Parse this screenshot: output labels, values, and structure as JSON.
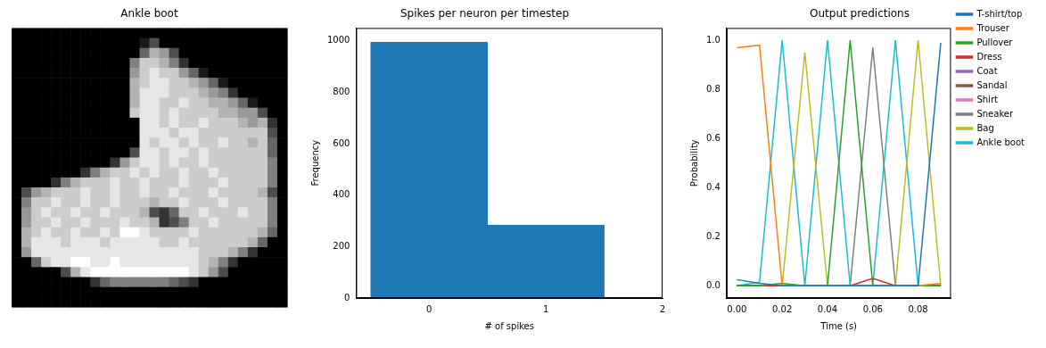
{
  "chart_data": [
    {
      "type": "image",
      "title": "Ankle boot",
      "tick_labels": false,
      "cells": [
        [
          0,
          0,
          0,
          0,
          0,
          0,
          0,
          0,
          0,
          0,
          0,
          0,
          0,
          0,
          0,
          0,
          0,
          0,
          0,
          0,
          0,
          0,
          0,
          0,
          0,
          0,
          0,
          0
        ],
        [
          0,
          0,
          0,
          0,
          0,
          0,
          0,
          0,
          0,
          0,
          0,
          0,
          0,
          0.1,
          0.3,
          0,
          0,
          0,
          0,
          0,
          0,
          0,
          0,
          0,
          0,
          0,
          0,
          0
        ],
        [
          0,
          0,
          0,
          0,
          0,
          0,
          0,
          0,
          0,
          0,
          0,
          0,
          0,
          0.4,
          0.7,
          0.6,
          0.3,
          0,
          0,
          0,
          0,
          0,
          0,
          0,
          0,
          0,
          0,
          0
        ],
        [
          0,
          0,
          0,
          0,
          0,
          0,
          0,
          0,
          0,
          0,
          0,
          0,
          0.5,
          0.8,
          0.8,
          0.7,
          0.5,
          0.2,
          0,
          0,
          0,
          0,
          0,
          0,
          0,
          0,
          0,
          0
        ],
        [
          0,
          0,
          0,
          0,
          0,
          0,
          0,
          0,
          0,
          0,
          0,
          0,
          0.6,
          0.8,
          0.9,
          0.8,
          0.8,
          0.6,
          0.4,
          0.1,
          0,
          0,
          0,
          0,
          0,
          0,
          0,
          0
        ],
        [
          0,
          0,
          0,
          0,
          0,
          0,
          0,
          0,
          0,
          0,
          0,
          0,
          0.7,
          0.8,
          0.9,
          0.9,
          0.8,
          0.8,
          0.7,
          0.6,
          0.4,
          0.1,
          0,
          0,
          0,
          0,
          0,
          0
        ],
        [
          0,
          0,
          0,
          0,
          0,
          0,
          0,
          0,
          0,
          0,
          0,
          0,
          0.7,
          0.9,
          0.9,
          0.9,
          0.8,
          0.8,
          0.8,
          0.7,
          0.6,
          0.5,
          0.2,
          0,
          0,
          0,
          0,
          0
        ],
        [
          0,
          0,
          0,
          0,
          0,
          0,
          0,
          0,
          0,
          0,
          0,
          0,
          0.7,
          0.9,
          0.9,
          0.8,
          0.8,
          0.9,
          0.8,
          0.8,
          0.7,
          0.7,
          0.6,
          0.4,
          0.1,
          0,
          0,
          0
        ],
        [
          0,
          0,
          0,
          0,
          0,
          0,
          0,
          0,
          0,
          0,
          0,
          0,
          0.8,
          0.9,
          0.9,
          0.8,
          0.9,
          0.8,
          0.8,
          0.8,
          0.8,
          0.7,
          0.7,
          0.6,
          0.6,
          0.3,
          0,
          0
        ],
        [
          0,
          0,
          0,
          0,
          0,
          0,
          0,
          0,
          0,
          0,
          0,
          0,
          0,
          0.9,
          0.9,
          0.8,
          0.9,
          0.8,
          0.8,
          0.9,
          0.8,
          0.8,
          0.8,
          0.7,
          0.6,
          0.7,
          0.2,
          0
        ],
        [
          0,
          0,
          0,
          0,
          0,
          0,
          0,
          0,
          0,
          0,
          0,
          0,
          0,
          0.9,
          0.9,
          0.9,
          0.8,
          0.9,
          0.9,
          0.8,
          0.8,
          0.8,
          0.8,
          0.8,
          0.8,
          0.8,
          0.3,
          0
        ],
        [
          0,
          0,
          0,
          0,
          0,
          0,
          0,
          0,
          0,
          0,
          0,
          0,
          0,
          0.9,
          0.8,
          0.9,
          0.9,
          0.8,
          0.9,
          0.8,
          0.8,
          0.9,
          0.8,
          0.8,
          0.7,
          0.8,
          0.4,
          0
        ],
        [
          0,
          0,
          0,
          0,
          0,
          0,
          0,
          0,
          0,
          0,
          0,
          0,
          0.3,
          0.9,
          0.9,
          0.8,
          0.9,
          0.9,
          0.8,
          0.9,
          0.8,
          0.8,
          0.8,
          0.8,
          0.8,
          0.8,
          0.4,
          0
        ],
        [
          0,
          0,
          0,
          0,
          0,
          0,
          0,
          0,
          0,
          0,
          0.2,
          0.6,
          0.8,
          0.9,
          0.9,
          0.8,
          0.9,
          0.8,
          0.8,
          0.9,
          0.8,
          0.8,
          0.8,
          0.8,
          0.8,
          0.8,
          0.5,
          0
        ],
        [
          0,
          0,
          0,
          0,
          0,
          0,
          0,
          0.2,
          0.5,
          0.7,
          0.8,
          0.8,
          0.9,
          0.8,
          0.9,
          0.8,
          0.8,
          0.9,
          0.8,
          0.8,
          0.9,
          0.8,
          0.8,
          0.8,
          0.8,
          0.8,
          0.5,
          0
        ],
        [
          0,
          0,
          0,
          0,
          0.2,
          0.5,
          0.7,
          0.8,
          0.8,
          0.8,
          0.9,
          0.8,
          0.8,
          0.9,
          0.8,
          0.8,
          0.8,
          0.9,
          0.8,
          0.8,
          0.8,
          0.9,
          0.8,
          0.8,
          0.8,
          0.8,
          0.5,
          0
        ],
        [
          0,
          0.3,
          0.6,
          0.7,
          0.8,
          0.8,
          0.8,
          0.9,
          0.8,
          0.8,
          0.9,
          0.8,
          0.8,
          0.9,
          0.8,
          0.8,
          0.9,
          0.8,
          0.8,
          0.8,
          0.9,
          0.8,
          0.8,
          0.8,
          0.8,
          0.7,
          0.3,
          0
        ],
        [
          0,
          0.5,
          0.8,
          0.8,
          0.9,
          0.8,
          0.8,
          0.9,
          0.8,
          0.8,
          0.9,
          0.8,
          0.8,
          0.8,
          0.7,
          0.8,
          0.8,
          0.9,
          0.8,
          0.8,
          0.8,
          0.9,
          0.8,
          0.8,
          0.8,
          0.8,
          0.5,
          0
        ],
        [
          0,
          0.6,
          0.8,
          0.9,
          0.8,
          0.8,
          0.9,
          0.8,
          0.8,
          0.9,
          0.8,
          0.8,
          0.8,
          0.7,
          0.3,
          0.2,
          0.4,
          0.8,
          0.8,
          0.9,
          0.8,
          0.8,
          0.8,
          0.9,
          0.8,
          0.8,
          0.5,
          0
        ],
        [
          0,
          0.6,
          0.8,
          0.8,
          0.9,
          0.8,
          0.8,
          0.9,
          0.8,
          0.8,
          0.8,
          0.9,
          0.8,
          0.8,
          0.7,
          0.2,
          0.3,
          0.5,
          0.8,
          0.8,
          0.9,
          0.8,
          0.8,
          0.8,
          0.8,
          0.8,
          0.5,
          0
        ],
        [
          0,
          0.7,
          0.8,
          0.9,
          0.8,
          0.8,
          0.9,
          0.8,
          0.8,
          0.9,
          0.8,
          1.0,
          1.0,
          0.9,
          0.8,
          0.8,
          0.8,
          0.8,
          0.9,
          0.8,
          0.8,
          0.8,
          0.8,
          0.8,
          0.8,
          0.7,
          0.4,
          0
        ],
        [
          0,
          0.7,
          0.9,
          0.9,
          0.9,
          0.8,
          0.9,
          0.9,
          0.9,
          0.8,
          0.9,
          0.9,
          0.9,
          0.9,
          0.9,
          0.8,
          0.8,
          0.9,
          0.8,
          0.8,
          0.8,
          0.8,
          0.8,
          0.8,
          0.7,
          0.4,
          0,
          0
        ],
        [
          0,
          0.6,
          0.9,
          0.9,
          0.9,
          0.9,
          0.9,
          0.9,
          0.9,
          0.9,
          0.9,
          0.9,
          0.9,
          0.9,
          0.9,
          0.9,
          0.9,
          0.9,
          0.9,
          0.8,
          0.8,
          0.8,
          0.7,
          0.5,
          0.2,
          0,
          0,
          0
        ],
        [
          0,
          0,
          0.4,
          0.8,
          0.9,
          0.9,
          1.0,
          1.0,
          0.9,
          0.9,
          1.0,
          0.9,
          0.9,
          0.9,
          0.9,
          0.9,
          0.9,
          0.9,
          0.9,
          0.8,
          0.7,
          0.5,
          0.2,
          0,
          0,
          0,
          0,
          0
        ],
        [
          0,
          0,
          0,
          0,
          0,
          0.3,
          0.7,
          0.9,
          1.0,
          1.0,
          1.0,
          1.0,
          1.0,
          1.0,
          1.0,
          1.0,
          1.0,
          1.0,
          0.9,
          0.8,
          0.6,
          0.3,
          0,
          0,
          0,
          0,
          0,
          0
        ],
        [
          0,
          0,
          0,
          0,
          0,
          0,
          0,
          0,
          0.2,
          0.4,
          0.5,
          0.5,
          0.5,
          0.5,
          0.5,
          0.5,
          0.4,
          0.3,
          0.2,
          0,
          0,
          0,
          0,
          0,
          0,
          0,
          0,
          0
        ],
        [
          0,
          0,
          0,
          0,
          0,
          0,
          0,
          0,
          0,
          0,
          0,
          0,
          0,
          0,
          0,
          0,
          0,
          0,
          0,
          0,
          0,
          0,
          0,
          0,
          0,
          0,
          0,
          0
        ],
        [
          0,
          0,
          0,
          0,
          0,
          0,
          0,
          0,
          0,
          0,
          0,
          0,
          0,
          0,
          0,
          0,
          0,
          0,
          0,
          0,
          0,
          0,
          0,
          0,
          0,
          0,
          0,
          0
        ]
      ]
    },
    {
      "type": "histogram",
      "title": "Spikes per neuron per timestep",
      "x_label": "# of spikes",
      "y_label": "Frequency",
      "bins": [
        -0.5,
        0.5,
        1.5
      ],
      "counts": [
        995,
        283
      ],
      "color": "#1f77b4",
      "xlim": [
        -0.625,
        2
      ],
      "xticks": [
        0,
        1,
        2
      ],
      "ylim": [
        0,
        1050
      ],
      "yticks": [
        0,
        200,
        400,
        600,
        800,
        1000
      ],
      "grid": false
    },
    {
      "type": "line",
      "title": "Output predictions",
      "x_label": "Time (s)",
      "y_label": "Probability",
      "x": [
        0,
        0.01,
        0.02,
        0.03,
        0.04,
        0.05,
        0.06,
        0.07,
        0.08,
        0.09
      ],
      "series": [
        {
          "name": "T-shirt/top",
          "color": "#1f77b4",
          "values": [
            0.025,
            0.01,
            0,
            0,
            0,
            0,
            0,
            0,
            0,
            0.99
          ]
        },
        {
          "name": "Trouser",
          "color": "#ff7f0e",
          "values": [
            0.97,
            0.98,
            0,
            0,
            0,
            0,
            0,
            0,
            0,
            0.01
          ]
        },
        {
          "name": "Pullover",
          "color": "#2ca02c",
          "values": [
            0,
            0,
            0.01,
            0,
            0,
            1.0,
            0,
            0,
            0,
            0
          ]
        },
        {
          "name": "Dress",
          "color": "#d62728",
          "values": [
            0,
            0,
            0,
            0,
            0,
            0,
            0.03,
            0,
            0,
            0
          ]
        },
        {
          "name": "Coat",
          "color": "#9467bd",
          "values": [
            0,
            0,
            0,
            0,
            0,
            0,
            0,
            0,
            0,
            0
          ]
        },
        {
          "name": "Sandal",
          "color": "#8c564b",
          "values": [
            0,
            0,
            0,
            0,
            0,
            0,
            0,
            0,
            0,
            0
          ]
        },
        {
          "name": "Shirt",
          "color": "#e377c2",
          "values": [
            0,
            0,
            0,
            0,
            0,
            0,
            0,
            0,
            0,
            0
          ]
        },
        {
          "name": "Sneaker",
          "color": "#7f7f7f",
          "values": [
            0,
            0,
            0,
            0,
            0,
            0,
            0.97,
            0,
            0,
            0
          ]
        },
        {
          "name": "Bag",
          "color": "#bcbd22",
          "values": [
            0,
            0,
            0,
            0.95,
            0,
            0,
            0,
            0,
            1.0,
            0
          ]
        },
        {
          "name": "Ankle boot",
          "color": "#17becf",
          "values": [
            0,
            0.015,
            1.0,
            0,
            1.0,
            0,
            0,
            1.0,
            0,
            0
          ]
        }
      ],
      "xlim": [
        -0.0045,
        0.0945
      ],
      "xticks": [
        {
          "value": 0,
          "label": "0.00"
        },
        {
          "value": 0.02,
          "label": "0.02"
        },
        {
          "value": 0.04,
          "label": "0.04"
        },
        {
          "value": 0.06,
          "label": "0.06"
        },
        {
          "value": 0.08,
          "label": "0.08"
        }
      ],
      "ylim": [
        -0.05,
        1.05
      ],
      "yticks": [
        {
          "value": 0,
          "label": "0.0"
        },
        {
          "value": 0.2,
          "label": "0.2"
        },
        {
          "value": 0.4,
          "label": "0.4"
        },
        {
          "value": 0.6,
          "label": "0.6"
        },
        {
          "value": 0.8,
          "label": "0.8"
        },
        {
          "value": 1.0,
          "label": "1.0"
        }
      ],
      "legend": "right",
      "grid": false
    }
  ]
}
